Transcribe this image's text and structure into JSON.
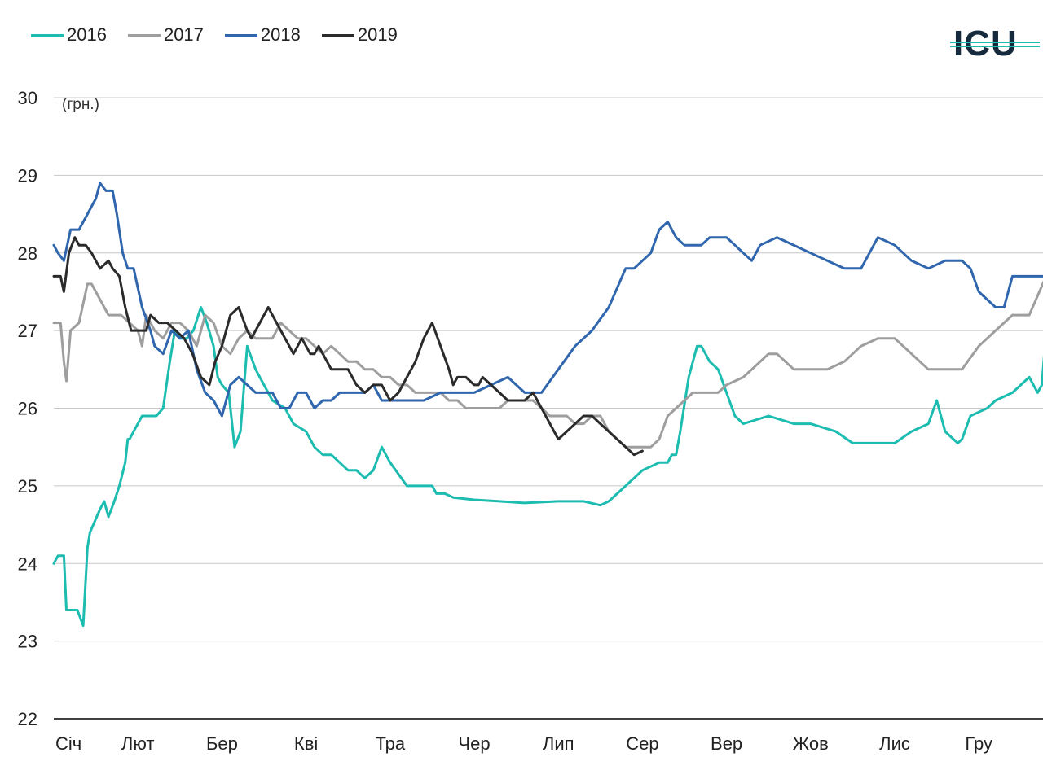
{
  "legend": [
    {
      "name": "2016",
      "color": "#1dbcb0"
    },
    {
      "name": "2017",
      "color": "#9e9e9e"
    },
    {
      "name": "2018",
      "color": "#2f66ad"
    },
    {
      "name": "2019",
      "color": "#2b2b2b"
    }
  ],
  "logo": {
    "text": "ICU",
    "color": "#152a3d",
    "accent": "#1dbcb0"
  },
  "chart_data": {
    "type": "line",
    "title": "",
    "ylabel": "(грн.)",
    "ylim": [
      22,
      30
    ],
    "yticks": [
      "30",
      "29",
      "28",
      "27",
      "26",
      "25",
      "24",
      "23",
      "22"
    ],
    "xlim": [
      1,
      13
    ],
    "xticks": [
      "Січ",
      "Лют",
      "Бер",
      "Кві",
      "Тра",
      "Чер",
      "Лип",
      "Сер",
      "Вер",
      "Жов",
      "Лис",
      "Гру"
    ],
    "grid": true,
    "legend_position": "top-left",
    "series": [
      {
        "name": "2016",
        "color": "#1dbcb0",
        "x": [
          1.0,
          1.05,
          1.12,
          1.15,
          1.2,
          1.28,
          1.35,
          1.4,
          1.43,
          1.47,
          1.55,
          1.6,
          1.65,
          1.72,
          1.78,
          1.85,
          1.88,
          1.9,
          1.95,
          2.05,
          2.15,
          2.22,
          2.3,
          2.38,
          2.44,
          2.5,
          2.58,
          2.66,
          2.75,
          2.82,
          2.9,
          2.95,
          3.0,
          3.08,
          3.15,
          3.22,
          3.3,
          3.4,
          3.5,
          3.6,
          3.75,
          3.85,
          4.0,
          4.1,
          4.2,
          4.3,
          4.4,
          4.5,
          4.6,
          4.7,
          4.8,
          4.9,
          5.0,
          5.2,
          5.4,
          5.5,
          5.55,
          5.65,
          5.75,
          6.0,
          6.3,
          6.6,
          7.0,
          7.3,
          7.5,
          7.6,
          7.8,
          8.0,
          8.2,
          8.3,
          8.35,
          8.4,
          8.45,
          8.55,
          8.65,
          8.7,
          8.75,
          8.8,
          8.9,
          9.0,
          9.1,
          9.2,
          9.5,
          9.8,
          10.0,
          10.3,
          10.5,
          10.7,
          11.0,
          11.2,
          11.4,
          11.5,
          11.6,
          11.7,
          11.75,
          11.8,
          11.9,
          12.1,
          12.2,
          12.4,
          12.6,
          12.7,
          12.75,
          12.8,
          12.9
        ],
        "y": [
          24.0,
          24.1,
          24.1,
          23.4,
          23.4,
          23.4,
          23.2,
          24.2,
          24.4,
          24.5,
          24.7,
          24.8,
          24.6,
          24.8,
          25.0,
          25.3,
          25.6,
          25.6,
          25.7,
          25.9,
          25.9,
          25.9,
          26.0,
          26.6,
          27.0,
          26.9,
          26.9,
          27.0,
          27.3,
          27.1,
          26.8,
          26.4,
          26.3,
          26.2,
          25.5,
          25.7,
          26.8,
          26.5,
          26.3,
          26.1,
          26.0,
          25.8,
          25.7,
          25.5,
          25.4,
          25.4,
          25.3,
          25.2,
          25.2,
          25.1,
          25.2,
          25.5,
          25.3,
          25.0,
          25.0,
          25.0,
          24.9,
          24.9,
          24.85,
          24.82,
          24.8,
          24.78,
          24.8,
          24.8,
          24.75,
          24.8,
          25.0,
          25.2,
          25.3,
          25.3,
          25.4,
          25.4,
          25.7,
          26.4,
          26.8,
          26.8,
          26.7,
          26.6,
          26.5,
          26.2,
          25.9,
          25.8,
          25.9,
          25.8,
          25.8,
          25.7,
          25.55,
          25.55,
          25.55,
          25.7,
          25.8,
          26.1,
          25.7,
          25.6,
          25.55,
          25.6,
          25.9,
          26.0,
          26.1,
          26.2,
          26.4,
          26.2,
          26.3,
          27.0,
          27.1
        ]
      },
      {
        "name": "2017",
        "color": "#9e9e9e",
        "x": [
          1.0,
          1.08,
          1.12,
          1.15,
          1.2,
          1.3,
          1.4,
          1.45,
          1.55,
          1.65,
          1.7,
          1.8,
          1.9,
          2.0,
          2.05,
          2.1,
          2.2,
          2.3,
          2.4,
          2.5,
          2.6,
          2.7,
          2.8,
          2.9,
          3.0,
          3.1,
          3.2,
          3.3,
          3.4,
          3.5,
          3.6,
          3.7,
          3.8,
          3.9,
          4.0,
          4.1,
          4.2,
          4.3,
          4.4,
          4.5,
          4.6,
          4.7,
          4.8,
          4.9,
          5.0,
          5.1,
          5.2,
          5.3,
          5.4,
          5.5,
          5.6,
          5.7,
          5.8,
          5.9,
          6.0,
          6.1,
          6.2,
          6.3,
          6.4,
          6.5,
          6.6,
          6.7,
          6.8,
          6.9,
          7.0,
          7.1,
          7.2,
          7.3,
          7.4,
          7.5,
          7.6,
          7.7,
          7.8,
          7.9,
          8.0,
          8.1,
          8.2,
          8.3,
          8.4,
          8.5,
          8.6,
          8.7,
          8.8,
          8.9,
          9.0,
          9.2,
          9.4,
          9.5,
          9.6,
          9.8,
          10.0,
          10.2,
          10.4,
          10.6,
          10.8,
          11.0,
          11.2,
          11.4,
          11.6,
          11.8,
          12.0,
          12.2,
          12.4,
          12.6,
          12.8,
          12.9
        ],
        "y": [
          27.1,
          27.1,
          26.6,
          26.35,
          27.0,
          27.1,
          27.6,
          27.6,
          27.4,
          27.2,
          27.2,
          27.2,
          27.1,
          27.0,
          26.8,
          27.2,
          27.0,
          26.9,
          27.1,
          27.1,
          27.0,
          26.8,
          27.2,
          27.1,
          26.8,
          26.7,
          26.9,
          27.0,
          26.9,
          26.9,
          26.9,
          27.1,
          27.0,
          26.9,
          26.9,
          26.8,
          26.7,
          26.8,
          26.7,
          26.6,
          26.6,
          26.5,
          26.5,
          26.4,
          26.4,
          26.3,
          26.3,
          26.2,
          26.2,
          26.2,
          26.2,
          26.1,
          26.1,
          26.0,
          26.0,
          26.0,
          26.0,
          26.0,
          26.1,
          26.1,
          26.1,
          26.1,
          26.0,
          25.9,
          25.9,
          25.9,
          25.8,
          25.8,
          25.9,
          25.9,
          25.7,
          25.6,
          25.5,
          25.5,
          25.5,
          25.5,
          25.6,
          25.9,
          26.0,
          26.1,
          26.2,
          26.2,
          26.2,
          26.2,
          26.3,
          26.4,
          26.6,
          26.7,
          26.7,
          26.5,
          26.5,
          26.5,
          26.6,
          26.8,
          26.9,
          26.9,
          26.7,
          26.5,
          26.5,
          26.5,
          26.8,
          27.0,
          27.2,
          27.2,
          27.7,
          28.0
        ]
      },
      {
        "name": "2018",
        "color": "#2f66ad",
        "x": [
          1.0,
          1.05,
          1.12,
          1.2,
          1.3,
          1.4,
          1.5,
          1.55,
          1.62,
          1.7,
          1.75,
          1.82,
          1.88,
          1.95,
          2.05,
          2.15,
          2.2,
          2.3,
          2.4,
          2.5,
          2.6,
          2.7,
          2.8,
          2.9,
          3.0,
          3.1,
          3.2,
          3.3,
          3.4,
          3.5,
          3.6,
          3.7,
          3.8,
          3.9,
          4.0,
          4.1,
          4.2,
          4.3,
          4.4,
          4.5,
          4.6,
          4.7,
          4.8,
          4.9,
          5.0,
          5.2,
          5.4,
          5.6,
          5.8,
          6.0,
          6.2,
          6.4,
          6.6,
          6.8,
          7.0,
          7.2,
          7.4,
          7.6,
          7.8,
          7.9,
          8.0,
          8.1,
          8.2,
          8.3,
          8.4,
          8.5,
          8.6,
          8.7,
          8.8,
          8.9,
          9.0,
          9.1,
          9.2,
          9.3,
          9.4,
          9.6,
          9.8,
          10.0,
          10.2,
          10.4,
          10.6,
          10.8,
          11.0,
          11.2,
          11.4,
          11.6,
          11.8,
          11.9,
          12.0,
          12.1,
          12.2,
          12.3,
          12.4,
          12.5,
          12.6,
          12.7,
          12.8,
          12.9
        ],
        "y": [
          28.1,
          28.0,
          27.9,
          28.3,
          28.3,
          28.5,
          28.7,
          28.9,
          28.8,
          28.8,
          28.5,
          28.0,
          27.8,
          27.8,
          27.3,
          27.0,
          26.8,
          26.7,
          27.0,
          26.9,
          27.0,
          26.5,
          26.2,
          26.1,
          25.9,
          26.3,
          26.4,
          26.3,
          26.2,
          26.2,
          26.2,
          26.0,
          26.0,
          26.2,
          26.2,
          26.0,
          26.1,
          26.1,
          26.2,
          26.2,
          26.2,
          26.2,
          26.3,
          26.1,
          26.1,
          26.1,
          26.1,
          26.2,
          26.2,
          26.2,
          26.3,
          26.4,
          26.2,
          26.2,
          26.5,
          26.8,
          27.0,
          27.3,
          27.8,
          27.8,
          27.9,
          28.0,
          28.3,
          28.4,
          28.2,
          28.1,
          28.1,
          28.1,
          28.2,
          28.2,
          28.2,
          28.1,
          28.0,
          27.9,
          28.1,
          28.2,
          28.1,
          28.0,
          27.9,
          27.8,
          27.8,
          28.2,
          28.1,
          27.9,
          27.8,
          27.9,
          27.9,
          27.8,
          27.5,
          27.4,
          27.3,
          27.3,
          27.7,
          27.7,
          27.7,
          27.7,
          27.7,
          27.7
        ]
      },
      {
        "name": "2019",
        "color": "#2b2b2b",
        "x": [
          1.0,
          1.08,
          1.12,
          1.18,
          1.25,
          1.3,
          1.38,
          1.45,
          1.55,
          1.65,
          1.7,
          1.78,
          1.85,
          1.92,
          2.0,
          2.1,
          2.15,
          2.25,
          2.35,
          2.45,
          2.55,
          2.65,
          2.75,
          2.85,
          2.92,
          3.0,
          3.1,
          3.2,
          3.3,
          3.35,
          3.4,
          3.5,
          3.55,
          3.6,
          3.7,
          3.8,
          3.85,
          3.9,
          3.95,
          4.0,
          4.05,
          4.1,
          4.15,
          4.2,
          4.3,
          4.4,
          4.5,
          4.6,
          4.7,
          4.8,
          4.9,
          5.0,
          5.1,
          5.2,
          5.3,
          5.4,
          5.5,
          5.6,
          5.7,
          5.75,
          5.8,
          5.9,
          6.0,
          6.05,
          6.1,
          6.2,
          6.3,
          6.4,
          6.5,
          6.6,
          6.7,
          6.8,
          6.9,
          7.0,
          7.1,
          7.2,
          7.3,
          7.4,
          7.5,
          7.6,
          7.7,
          7.8,
          7.9,
          8.0
        ],
        "y": [
          27.7,
          27.7,
          27.5,
          28.0,
          28.2,
          28.1,
          28.1,
          28.0,
          27.8,
          27.9,
          27.8,
          27.7,
          27.3,
          27.0,
          27.0,
          27.0,
          27.2,
          27.1,
          27.1,
          27.0,
          26.9,
          26.7,
          26.4,
          26.3,
          26.6,
          26.8,
          27.2,
          27.3,
          27.0,
          26.9,
          27.0,
          27.2,
          27.3,
          27.2,
          27.0,
          26.8,
          26.7,
          26.8,
          26.9,
          26.8,
          26.7,
          26.7,
          26.8,
          26.7,
          26.5,
          26.5,
          26.5,
          26.3,
          26.2,
          26.3,
          26.3,
          26.1,
          26.2,
          26.4,
          26.6,
          26.9,
          27.1,
          26.8,
          26.5,
          26.3,
          26.4,
          26.4,
          26.3,
          26.3,
          26.4,
          26.3,
          26.2,
          26.1,
          26.1,
          26.1,
          26.2,
          26.0,
          25.8,
          25.6,
          25.7,
          25.8,
          25.9,
          25.9,
          25.8,
          25.7,
          25.6,
          25.5,
          25.4,
          25.45
        ]
      }
    ]
  }
}
